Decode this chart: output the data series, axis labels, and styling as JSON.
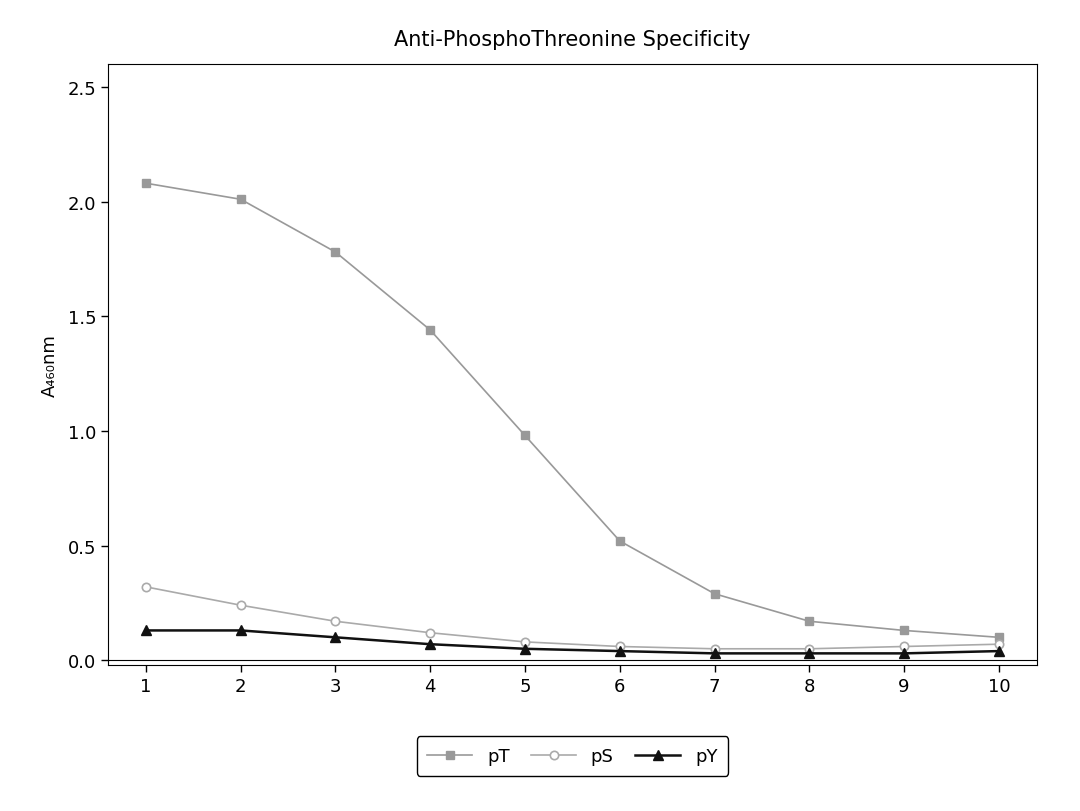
{
  "title": "Anti-PhosphoThreonine Specificity",
  "xlabel": "",
  "ylabel": "A₄₆₀nm",
  "x": [
    1,
    2,
    3,
    4,
    5,
    6,
    7,
    8,
    9,
    10
  ],
  "pT": [
    2.08,
    2.01,
    1.78,
    1.44,
    0.98,
    0.52,
    0.29,
    0.17,
    0.13,
    0.1
  ],
  "pS": [
    0.32,
    0.24,
    0.17,
    0.12,
    0.08,
    0.06,
    0.05,
    0.05,
    0.06,
    0.07
  ],
  "pY": [
    0.13,
    0.13,
    0.1,
    0.07,
    0.05,
    0.04,
    0.03,
    0.03,
    0.03,
    0.04
  ],
  "pT_color": "#999999",
  "pS_color": "#aaaaaa",
  "pY_color": "#111111",
  "line_color_pT": "#999999",
  "line_color_pS": "#aaaaaa",
  "line_color_pY": "#111111",
  "bg_color": "#ffffff",
  "fig_bg_color": "#ffffff",
  "ylim": [
    -0.02,
    2.6
  ],
  "xlim": [
    0.6,
    10.4
  ],
  "yticks": [
    0.0,
    0.5,
    1.0,
    1.5,
    2.0,
    2.5
  ],
  "xticks": [
    1,
    2,
    3,
    4,
    5,
    6,
    7,
    8,
    9,
    10
  ]
}
